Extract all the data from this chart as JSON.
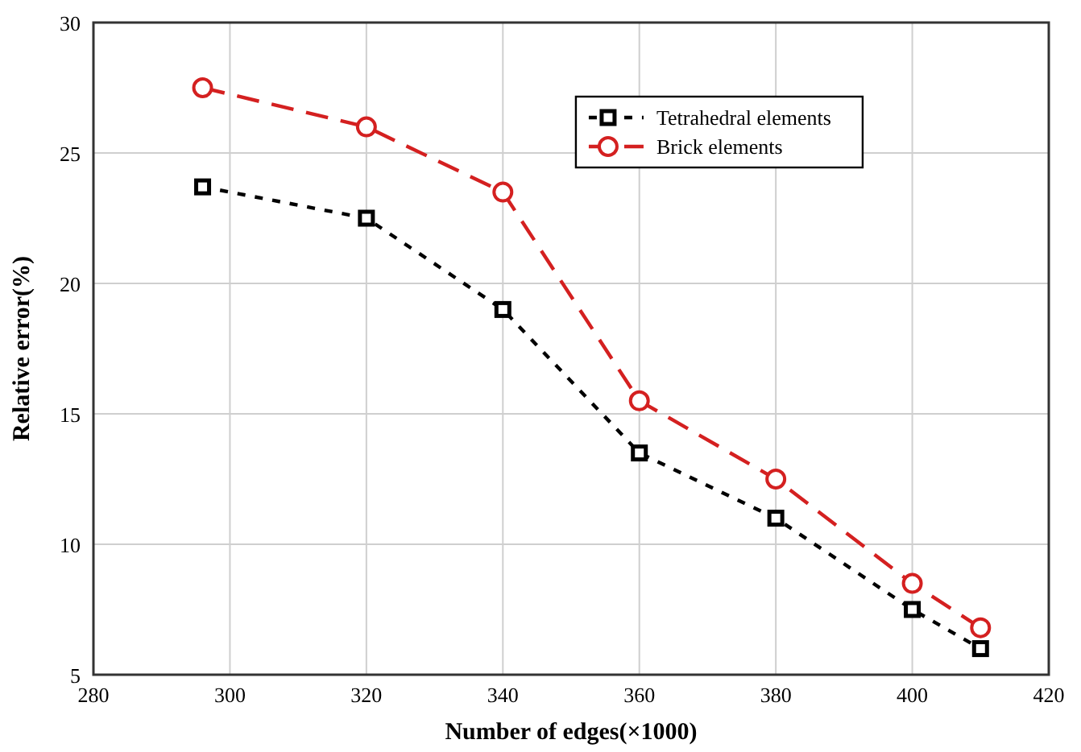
{
  "chart_data": {
    "type": "line",
    "xlabel": "Number of edges(×1000)",
    "ylabel": "Relative error(%)",
    "x": [
      296,
      320,
      340,
      360,
      380,
      400,
      410
    ],
    "series": [
      {
        "name": "Tetrahedral elements",
        "color": "#000000",
        "marker": "square",
        "line_style": "dotted",
        "values": [
          23.7,
          22.5,
          19.0,
          13.5,
          11.0,
          7.5,
          6.0
        ]
      },
      {
        "name": "Brick elements",
        "color": "#d42020",
        "marker": "circle",
        "line_style": "dashed",
        "values": [
          27.5,
          26.0,
          23.5,
          15.5,
          12.5,
          8.5,
          6.8
        ]
      }
    ],
    "xlim": [
      280,
      420
    ],
    "xticks": [
      280,
      300,
      320,
      340,
      360,
      380,
      400,
      420
    ],
    "ylim": [
      5,
      30
    ],
    "yticks": [
      5,
      10,
      15,
      20,
      25,
      30
    ],
    "grid": true,
    "legend": "top right"
  }
}
